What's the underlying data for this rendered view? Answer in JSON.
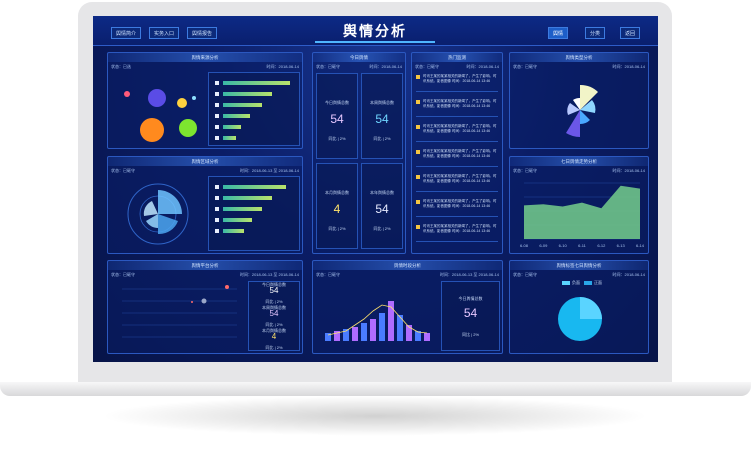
{
  "header": {
    "title": "舆情分析",
    "left_tabs": [
      "舆情简介",
      "实务入口",
      "舆情报告"
    ],
    "right_tabs": [
      "舆情",
      "分类",
      "返回"
    ]
  },
  "panels": {
    "source": {
      "title": "舆情来源分析",
      "status": "状态：已选",
      "date": "时间：2018-06-14",
      "bars": [
        95,
        70,
        55,
        38,
        25,
        18
      ]
    },
    "today": {
      "title": "今日舆情",
      "status": "状态：已砸守",
      "date": "时间：2018-06-14",
      "cells": [
        {
          "label": "今日舆情总数",
          "value": "54",
          "note": "同比 | 2%",
          "color": "#e6c7ff"
        },
        {
          "label": "本周舆情总数",
          "value": "54",
          "note": "同比 | 2%",
          "color": "#6fd5ff"
        },
        {
          "label": "本月舆情总数",
          "value": "4",
          "note": "同比 | 2%",
          "color": "#ffe36b"
        },
        {
          "label": "本年舆情总数",
          "value": "54",
          "note": "同比 | 2%",
          "color": "#e6eaff"
        }
      ]
    },
    "hot": {
      "title": "热门监测",
      "status": "状态：已砸守",
      "date": "时间：2018-06-14",
      "rows": [
        "时讯王某的某某相关的新闻了，产生了影响。时讯系统。影音图像 时间：2018-06-14 13:46",
        "时讯王某的某某相关的新闻了，产生了影响。时讯系统。影音图像 时间：2018-06-14 13:46",
        "时讯王某的某某相关的新闻了，产生了影响。时讯系统。影音图像 时间：2018-06-14 13:46",
        "时讯王某的某某相关的新闻了，产生了影响。时讯系统。影音图像 时间：2018-06-14 13:46",
        "时讯王某的某某相关的新闻了，产生了影响。时讯系统。影音图像 时间：2018-06-14 13:46",
        "时讯王某的某某相关的新闻了，产生了影响。时讯系统。影音图像 时间：2018-06-14 13:46",
        "时讯王某的某某相关的新闻了，产生了影响。时讯系统。影音图像 时间：2018-06-14 13:46"
      ]
    },
    "type": {
      "title": "舆情类型分析",
      "status": "状态：已砸守",
      "date": "时间：2018-06-14"
    },
    "region": {
      "title": "舆情区域分析",
      "status": "状态：已砸守",
      "date": "时间：2018-06-13 至 2018-06-14",
      "bars": [
        90,
        70,
        55,
        42,
        30
      ]
    },
    "trend": {
      "title": "七日舆情走势分析",
      "status": "状态：已砸守",
      "date": "时间：2018-06-14",
      "x": [
        "6-08",
        "6-09",
        "6-10",
        "6-11",
        "6-12",
        "6-13",
        "6-14"
      ],
      "values": [
        60,
        62,
        58,
        65,
        55,
        95,
        90
      ]
    },
    "platform": {
      "title": "舆情平台分析",
      "status": "状态：已砸守",
      "date": "时间：2018-06-13 至 2018-06-14",
      "cells": [
        {
          "label": "今日舆情总数",
          "value": "54",
          "note": "同比 | 2%",
          "color": "#ffffff"
        },
        {
          "label": "本周舆情总数",
          "value": "54",
          "note": "同比 | 2%",
          "color": "#e6c7ff"
        },
        {
          "label": "本月舆情总数",
          "value": "4",
          "note": "同比 | 2%",
          "color": "#ffe36b"
        }
      ]
    },
    "period": {
      "title": "舆情时段分析",
      "status": "状态：已砸守",
      "date": "时间：2018-06-13 至 2018-06-14",
      "cell": {
        "label": "今日舆情总数",
        "value": "54",
        "note": "同比 | 2%"
      }
    },
    "sentiment": {
      "title": "舆情标签七日舆情分析",
      "status": "状态：已砸守",
      "date": "时间：2018-06-14",
      "legend": [
        "负面",
        "正面"
      ]
    }
  }
}
